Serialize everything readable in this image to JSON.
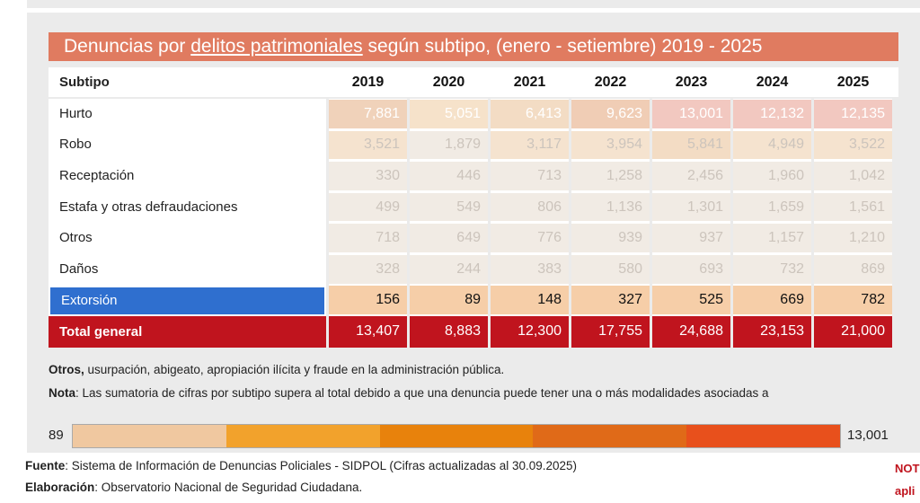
{
  "title": {
    "pre": "Denuncias por ",
    "link": "delitos patrimoniales",
    "post": " según subtipo, (enero - setiembre) 2019 - 2025"
  },
  "header": {
    "label": "Subtipo",
    "years": [
      "2019",
      "2020",
      "2021",
      "2022",
      "2023",
      "2024",
      "2025"
    ]
  },
  "rows": [
    {
      "label": "Hurto",
      "values": [
        "7,881",
        "5,051",
        "6,413",
        "9,623",
        "13,001",
        "12,132",
        "12,135"
      ]
    },
    {
      "label": "Robo",
      "values": [
        "3,521",
        "1,879",
        "3,117",
        "3,954",
        "5,841",
        "4,949",
        "3,522"
      ]
    },
    {
      "label": "Receptación",
      "values": [
        "330",
        "446",
        "713",
        "1,258",
        "2,456",
        "1,960",
        "1,042"
      ]
    },
    {
      "label": "Estafa y otras defraudaciones",
      "values": [
        "499",
        "549",
        "806",
        "1,136",
        "1,301",
        "1,659",
        "1,561"
      ]
    },
    {
      "label": "Otros",
      "values": [
        "718",
        "649",
        "776",
        "939",
        "937",
        "1,157",
        "1,210"
      ]
    },
    {
      "label": "Daños",
      "values": [
        "328",
        "244",
        "383",
        "580",
        "693",
        "732",
        "869"
      ]
    },
    {
      "label": "Extorsión",
      "values": [
        "156",
        "89",
        "148",
        "327",
        "525",
        "669",
        "782"
      ]
    },
    {
      "label": "Total general",
      "values": [
        "13,407",
        "8,883",
        "12,300",
        "17,755",
        "24,688",
        "23,153",
        "21,000"
      ]
    }
  ],
  "notes": {
    "otros_bold": "Otros,",
    "otros_text": " usurpación, abigeato, apropiación ilícita y fraude en la administración pública.",
    "nota_bold": "Nota",
    "nota_text": ": Las sumatoria de cifras por subtipo supera al total debido a que una denuncia puede tener una o más modalidades asociadas a"
  },
  "legend": {
    "min": "89",
    "max": "13,001",
    "colors": [
      "#f0c8a0",
      "#f2a22c",
      "#e8820c",
      "#e06a18",
      "#e8501c"
    ]
  },
  "footer": {
    "fuente_bold": "Fuente",
    "fuente_text": ": Sistema de Información de Denuncias Policiales - SIDPOL (Cifras actualizadas al 30.09.2025)",
    "elab_bold": "Elaboración",
    "elab_text": ": Observatorio Nacional de Seguridad Ciudadana.",
    "side1": "NOT",
    "side2": "apli"
  },
  "cell_colors": [
    [
      "#f0d2ba",
      "#f6e2ca",
      "#f3dcc4",
      "#f0cdb5",
      "#f2c8c0",
      "#f2c8c0",
      "#f2c8c0"
    ],
    [
      "#f5e3cf",
      "#f1ebe4",
      "#f5e3cf",
      "#f5e3cf",
      "#f3dcc4",
      "#f5e3cf",
      "#f5e3cf"
    ]
  ]
}
